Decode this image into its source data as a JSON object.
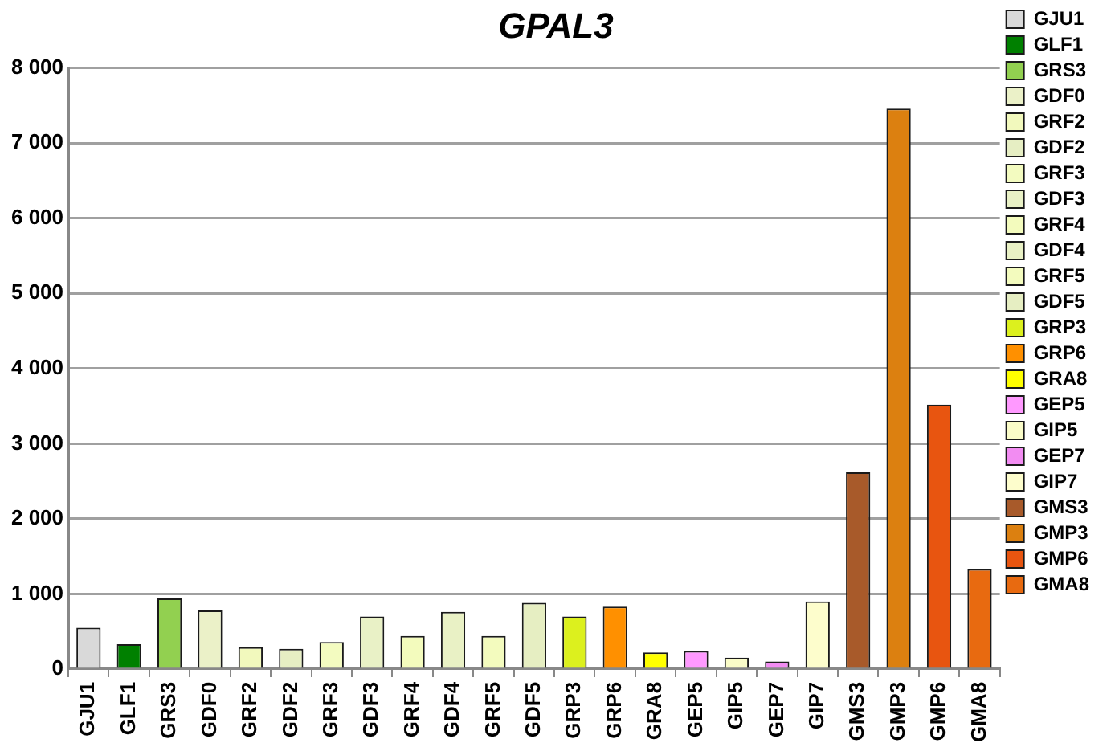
{
  "chart_data": {
    "type": "bar",
    "title": "GPAL3",
    "categories": [
      "GJU1",
      "GLF1",
      "GRS3",
      "GDF0",
      "GRF2",
      "GDF2",
      "GRF3",
      "GDF3",
      "GRF4",
      "GDF4",
      "GRF5",
      "GDF5",
      "GRP3",
      "GRP6",
      "GRA8",
      "GEP5",
      "GIP5",
      "GEP7",
      "GIP7",
      "GMS3",
      "GMP3",
      "GMP6",
      "GMA8"
    ],
    "series": [
      {
        "name": "GJU1",
        "color": "#d9d9d9",
        "values": [
          550,
          null,
          null,
          null,
          null,
          null,
          null,
          null,
          null,
          null,
          null,
          null,
          null,
          null,
          null,
          null,
          null,
          null,
          null,
          null,
          null,
          null,
          null
        ]
      },
      {
        "name": "GLF1",
        "color": "#008000",
        "values": [
          null,
          330,
          null,
          null,
          null,
          null,
          null,
          null,
          null,
          null,
          null,
          null,
          null,
          null,
          null,
          null,
          null,
          null,
          null,
          null,
          null,
          null,
          null
        ]
      },
      {
        "name": "GRS3",
        "color": "#92d050",
        "values": [
          null,
          null,
          940,
          null,
          null,
          null,
          null,
          null,
          null,
          null,
          null,
          null,
          null,
          null,
          null,
          null,
          null,
          null,
          null,
          null,
          null,
          null,
          null
        ]
      },
      {
        "name": "GDF0",
        "color": "#ebf1c8",
        "values": [
          null,
          null,
          null,
          780,
          null,
          null,
          null,
          null,
          null,
          null,
          null,
          null,
          null,
          null,
          null,
          null,
          null,
          null,
          null,
          null,
          null,
          null,
          null
        ]
      },
      {
        "name": "GRF2",
        "color": "#f2f9bd",
        "values": [
          null,
          null,
          null,
          null,
          290,
          null,
          null,
          null,
          null,
          null,
          null,
          null,
          null,
          null,
          null,
          null,
          null,
          null,
          null,
          null,
          null,
          null,
          null
        ]
      },
      {
        "name": "GDF2",
        "color": "#e6eec3",
        "values": [
          null,
          null,
          null,
          null,
          null,
          270,
          null,
          null,
          null,
          null,
          null,
          null,
          null,
          null,
          null,
          null,
          null,
          null,
          null,
          null,
          null,
          null,
          null
        ]
      },
      {
        "name": "GRF3",
        "color": "#f3fbc0",
        "values": [
          null,
          null,
          null,
          null,
          null,
          null,
          360,
          null,
          null,
          null,
          null,
          null,
          null,
          null,
          null,
          null,
          null,
          null,
          null,
          null,
          null,
          null,
          null
        ]
      },
      {
        "name": "GDF3",
        "color": "#e9f1c6",
        "values": [
          null,
          null,
          null,
          null,
          null,
          null,
          null,
          700,
          null,
          null,
          null,
          null,
          null,
          null,
          null,
          null,
          null,
          null,
          null,
          null,
          null,
          null,
          null
        ]
      },
      {
        "name": "GRF4",
        "color": "#f3fbbd",
        "values": [
          null,
          null,
          null,
          null,
          null,
          null,
          null,
          null,
          440,
          null,
          null,
          null,
          null,
          null,
          null,
          null,
          null,
          null,
          null,
          null,
          null,
          null,
          null
        ]
      },
      {
        "name": "GDF4",
        "color": "#e9f1c5",
        "values": [
          null,
          null,
          null,
          null,
          null,
          null,
          null,
          null,
          null,
          760,
          null,
          null,
          null,
          null,
          null,
          null,
          null,
          null,
          null,
          null,
          null,
          null,
          null
        ]
      },
      {
        "name": "GRF5",
        "color": "#f3fbbe",
        "values": [
          null,
          null,
          null,
          null,
          null,
          null,
          null,
          null,
          null,
          null,
          440,
          null,
          null,
          null,
          null,
          null,
          null,
          null,
          null,
          null,
          null,
          null,
          null
        ]
      },
      {
        "name": "GDF5",
        "color": "#e6eec2",
        "values": [
          null,
          null,
          null,
          null,
          null,
          null,
          null,
          null,
          null,
          null,
          null,
          880,
          null,
          null,
          null,
          null,
          null,
          null,
          null,
          null,
          null,
          null,
          null
        ]
      },
      {
        "name": "GRP3",
        "color": "#dcf01e",
        "values": [
          null,
          null,
          null,
          null,
          null,
          null,
          null,
          null,
          null,
          null,
          null,
          null,
          700,
          null,
          null,
          null,
          null,
          null,
          null,
          null,
          null,
          null,
          null
        ]
      },
      {
        "name": "GRP6",
        "color": "#ff9000",
        "values": [
          null,
          null,
          null,
          null,
          null,
          null,
          null,
          null,
          null,
          null,
          null,
          null,
          null,
          830,
          null,
          null,
          null,
          null,
          null,
          null,
          null,
          null,
          null
        ]
      },
      {
        "name": "GRA8",
        "color": "#ffff00",
        "values": [
          null,
          null,
          null,
          null,
          null,
          null,
          null,
          null,
          null,
          null,
          null,
          null,
          null,
          null,
          220,
          null,
          null,
          null,
          null,
          null,
          null,
          null,
          null
        ]
      },
      {
        "name": "GEP5",
        "color": "#ff99ff",
        "values": [
          null,
          null,
          null,
          null,
          null,
          null,
          null,
          null,
          null,
          null,
          null,
          null,
          null,
          null,
          null,
          240,
          null,
          null,
          null,
          null,
          null,
          null,
          null
        ]
      },
      {
        "name": "GIP5",
        "color": "#fafcc8",
        "values": [
          null,
          null,
          null,
          null,
          null,
          null,
          null,
          null,
          null,
          null,
          null,
          null,
          null,
          null,
          null,
          null,
          150,
          null,
          null,
          null,
          null,
          null,
          null
        ]
      },
      {
        "name": "GEP7",
        "color": "#f28cf2",
        "values": [
          null,
          null,
          null,
          null,
          null,
          null,
          null,
          null,
          null,
          null,
          null,
          null,
          null,
          null,
          null,
          null,
          null,
          100,
          null,
          null,
          null,
          null,
          null
        ]
      },
      {
        "name": "GIP7",
        "color": "#fdfdcc",
        "values": [
          null,
          null,
          null,
          null,
          null,
          null,
          null,
          null,
          null,
          null,
          null,
          null,
          null,
          null,
          null,
          null,
          null,
          null,
          900,
          null,
          null,
          null,
          null
        ]
      },
      {
        "name": "GMS3",
        "color": "#a85a2a",
        "values": [
          null,
          null,
          null,
          null,
          null,
          null,
          null,
          null,
          null,
          null,
          null,
          null,
          null,
          null,
          null,
          null,
          null,
          null,
          null,
          2620,
          null,
          null,
          null
        ]
      },
      {
        "name": "GMP3",
        "color": "#dc8010",
        "values": [
          null,
          null,
          null,
          null,
          null,
          null,
          null,
          null,
          null,
          null,
          null,
          null,
          null,
          null,
          null,
          null,
          null,
          null,
          null,
          null,
          7460,
          null,
          null
        ]
      },
      {
        "name": "GMP6",
        "color": "#e85510",
        "values": [
          null,
          null,
          null,
          null,
          null,
          null,
          null,
          null,
          null,
          null,
          null,
          null,
          null,
          null,
          null,
          null,
          null,
          null,
          null,
          null,
          null,
          3520,
          null
        ]
      },
      {
        "name": "GMA8",
        "color": "#e86a10",
        "values": [
          null,
          null,
          null,
          null,
          null,
          null,
          null,
          null,
          null,
          null,
          null,
          null,
          null,
          null,
          null,
          null,
          null,
          null,
          null,
          null,
          null,
          null,
          1330
        ]
      }
    ],
    "ylim": [
      0,
      8000
    ],
    "yticks": [
      0,
      {
        "value": 1000,
        "label": "1 000"
      },
      {
        "value": 2000,
        "label": "2 000"
      },
      {
        "value": 3000,
        "label": "3 000"
      },
      {
        "value": 4000,
        "label": "4 000"
      },
      {
        "value": 5000,
        "label": "5 000"
      },
      {
        "value": 6000,
        "label": "6 000"
      },
      {
        "value": 7000,
        "label": "7 000"
      },
      {
        "value": 8000,
        "label": "8 000"
      }
    ],
    "grid": "y",
    "legend": "right"
  }
}
